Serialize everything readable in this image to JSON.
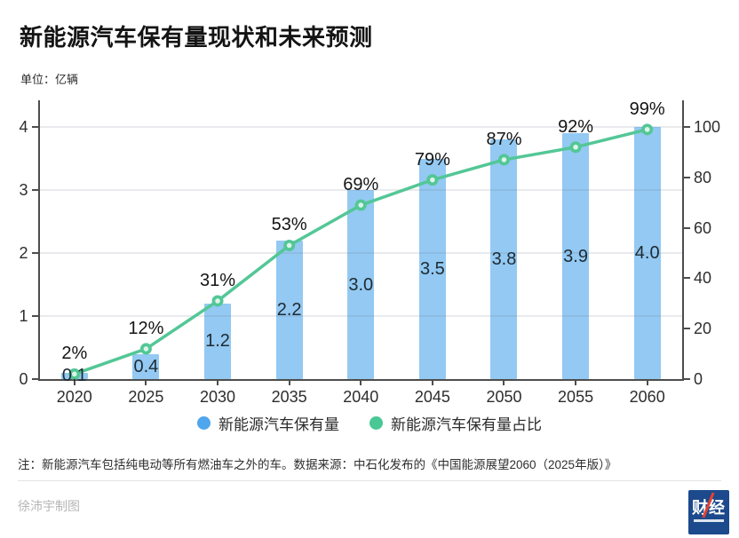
{
  "header": {
    "title": "新能源汽车保有量现状和未来预测",
    "unit_label": "单位：亿辆"
  },
  "chart_data": {
    "type": "bar",
    "subtype": "bar-line-combo",
    "categories": [
      "2020",
      "2025",
      "2030",
      "2035",
      "2040",
      "2045",
      "2050",
      "2055",
      "2060"
    ],
    "series": [
      {
        "name": "新能源汽车保有量",
        "type": "bar",
        "axis": "left",
        "values": [
          0.1,
          0.4,
          1.2,
          2.2,
          3.0,
          3.5,
          3.8,
          3.9,
          4.0
        ],
        "labels": [
          "0.1",
          "0.4",
          "1.2",
          "2.2",
          "3.0",
          "3.5",
          "3.8",
          "3.9",
          "4.0"
        ],
        "color": "#93c9f2"
      },
      {
        "name": "新能源汽车保有量占比",
        "type": "line",
        "axis": "right",
        "values": [
          2,
          12,
          31,
          53,
          69,
          79,
          87,
          92,
          99
        ],
        "labels": [
          "2%",
          "12%",
          "31%",
          "53%",
          "69%",
          "79%",
          "87%",
          "92%",
          "99%"
        ],
        "color": "#53c796"
      }
    ],
    "left_axis": {
      "ticks": [
        0,
        1,
        2,
        3,
        4
      ],
      "max": 4,
      "label": "亿辆"
    },
    "right_axis": {
      "ticks": [
        0,
        20,
        40,
        60,
        80,
        100
      ],
      "max": 100,
      "label": "%"
    },
    "grid": "horizontal-left-integers",
    "legend_position": "bottom",
    "title": "新能源汽车保有量现状和未来预测"
  },
  "legend": {
    "items": [
      {
        "label": "新能源汽车保有量",
        "color": "#4fa6ec"
      },
      {
        "label": "新能源汽车保有量占比",
        "color": "#49c795"
      }
    ]
  },
  "footnote": "注：新能源汽车包括纯电动等所有燃油车之外的车。数据来源：中石化发布的《中国能源展望2060（2025年版）》",
  "credit": "徐沛宇制图",
  "logo": {
    "text": "财经"
  }
}
